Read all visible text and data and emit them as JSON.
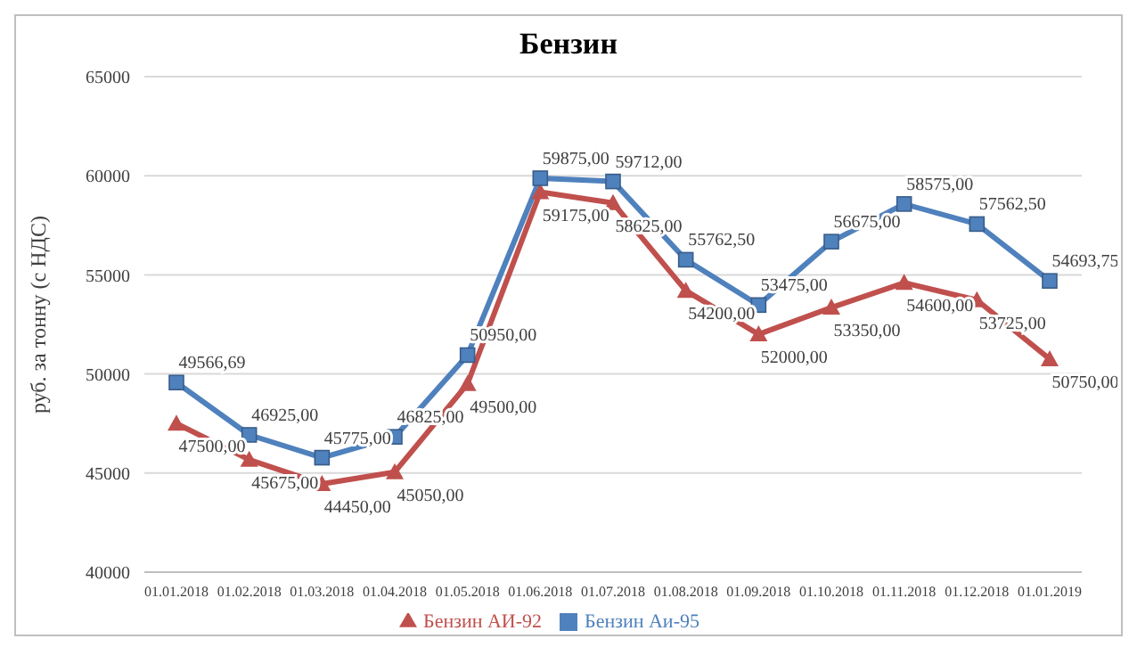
{
  "chart_data": {
    "type": "line",
    "title": "Бензин",
    "ylabel": "руб. за тонну (с НДС)",
    "categories": [
      "01.01.2018",
      "01.02.2018",
      "01.03.2018",
      "01.04.2018",
      "01.05.2018",
      "01.06.2018",
      "01.07.2018",
      "01.08.2018",
      "01.09.2018",
      "01.10.2018",
      "01.11.2018",
      "01.12.2018",
      "01.01.2019"
    ],
    "series": [
      {
        "name": "Бензин АИ-92",
        "color": "#c0504d",
        "marker": "triangle",
        "values": [
          47500,
          45675,
          44450,
          45050,
          49500,
          59175,
          58625,
          54200,
          52000,
          53350,
          54600,
          53725,
          50750
        ],
        "value_labels": [
          "47500,00",
          "45675,00",
          "44450,00",
          "45050,00",
          "49500,00",
          "59175,00",
          "58625,00",
          "54200,00",
          "52000,00",
          "53350,00",
          "54600,00",
          "53725,00",
          "50750,00"
        ]
      },
      {
        "name": "Бензин Аи-95",
        "color": "#4f81bd",
        "marker": "square",
        "values": [
          49566.69,
          46925,
          45775,
          46825,
          50950,
          59875,
          59712,
          55762.5,
          53475,
          56675,
          58575,
          57562.5,
          54693.75
        ],
        "value_labels": [
          "49566,69",
          "46925,00",
          "45775,00",
          "46825,00",
          "50950,00",
          "59875,00",
          "59712,00",
          "55762,50",
          "53475,00",
          "56675,00",
          "58575,00",
          "57562,50",
          "54693,75"
        ]
      }
    ],
    "ylim": [
      40000,
      65000
    ],
    "yticks": [
      40000,
      45000,
      50000,
      55000,
      60000,
      65000
    ],
    "grid": "y",
    "legend": "bottom",
    "line_style": "solid"
  }
}
